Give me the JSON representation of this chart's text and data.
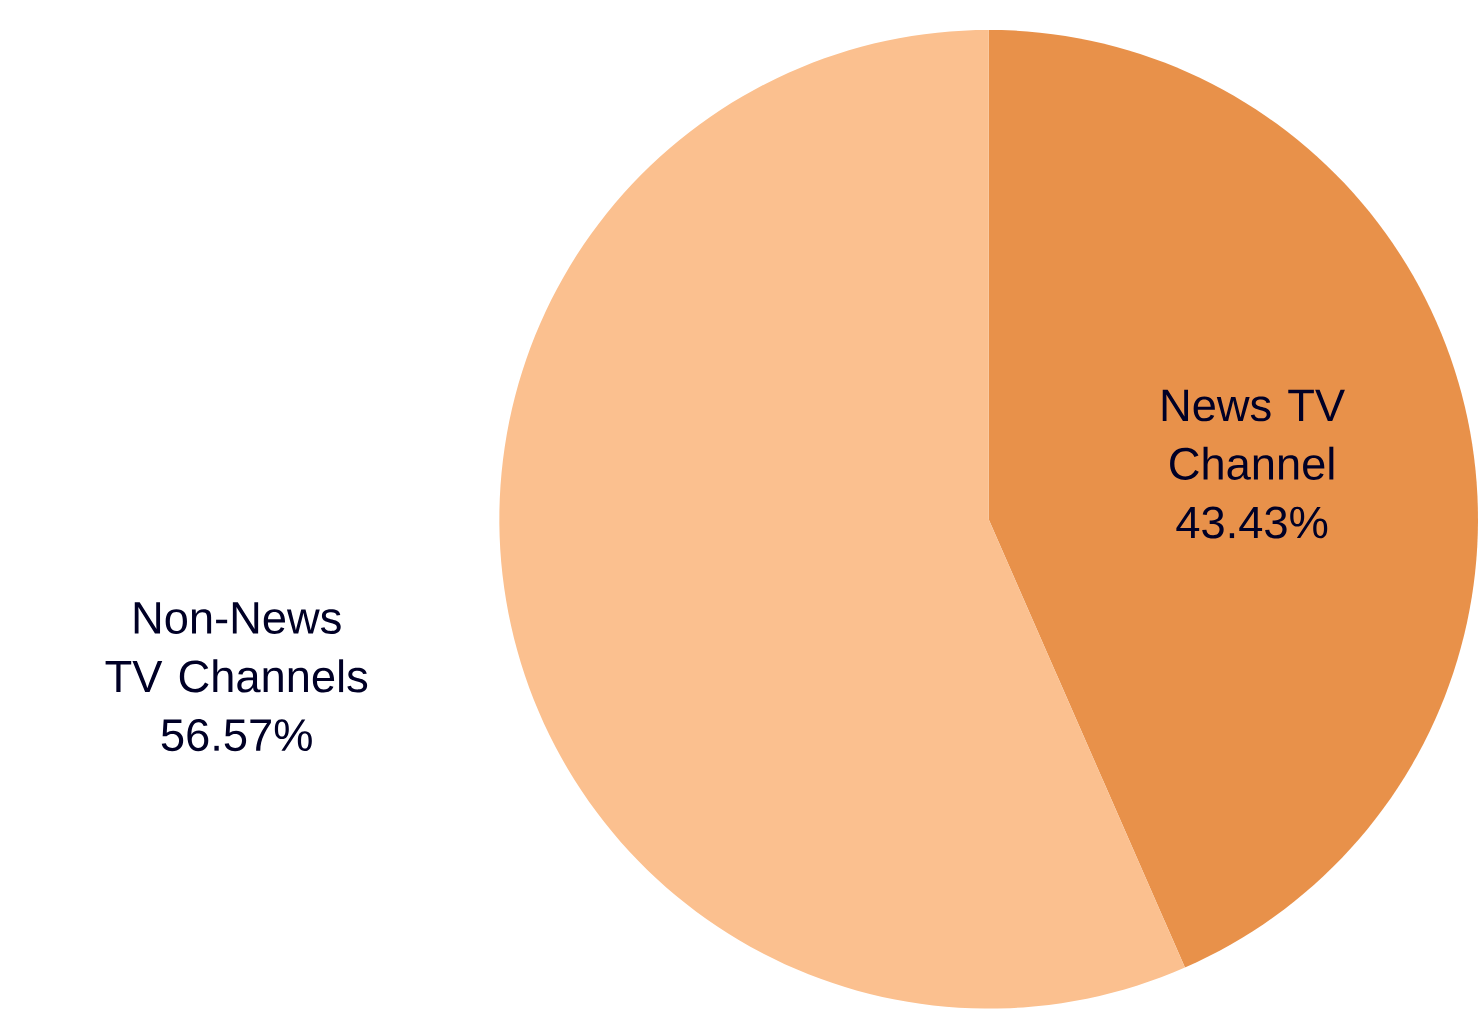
{
  "chart_data": {
    "type": "pie",
    "categories": [
      "News TV Channel",
      "Non-News TV Channels"
    ],
    "values": [
      43.43,
      56.57
    ],
    "value_labels": [
      "43.43%",
      "56.57%"
    ],
    "colors": [
      "#e8914a",
      "#fbc08f"
    ]
  }
}
